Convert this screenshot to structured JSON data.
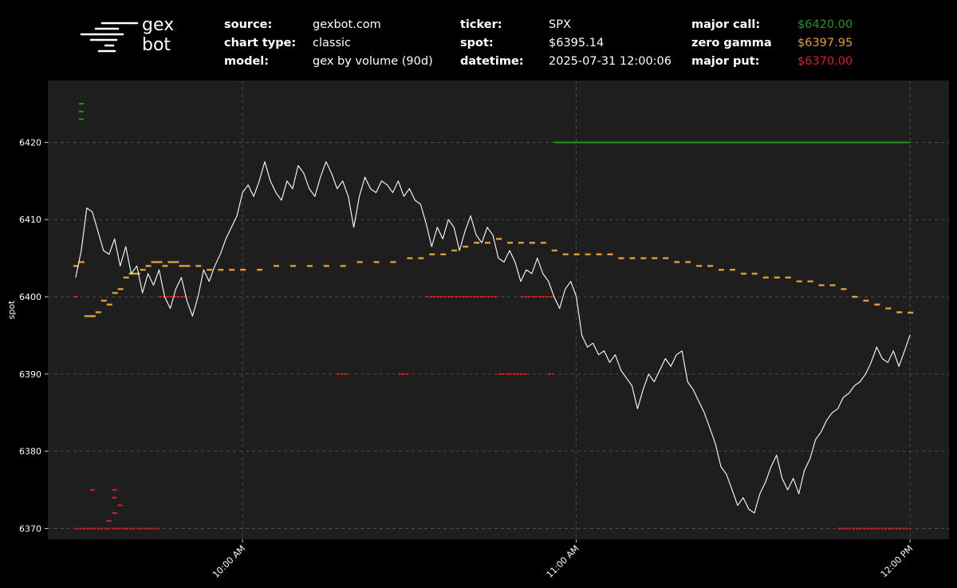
{
  "header": {
    "logo": {
      "line1": "gex",
      "line2": "bot"
    },
    "info": [
      {
        "key": "source:",
        "value": "gexbot.com"
      },
      {
        "key": "chart type:",
        "value": "classic"
      },
      {
        "key": "model:",
        "value": "gex by volume (90d)"
      },
      {
        "key": "ticker:",
        "value": "SPX"
      },
      {
        "key": "spot:",
        "value": "$6395.14"
      },
      {
        "key": "datetime:",
        "value": "2025-07-31 12:00:06"
      },
      {
        "key": "major call:",
        "value": "$6420.00",
        "color": "#1a9a1a"
      },
      {
        "key": "zero gamma",
        "value": "$6397.95",
        "color": "#e0a030"
      },
      {
        "key": "major put:",
        "value": "$6370.00",
        "color": "#e01b1b"
      }
    ]
  },
  "chart_data": {
    "type": "line",
    "title": "",
    "xlabel": "",
    "ylabel": "spot",
    "xlim": [
      "09:25",
      "12:07"
    ],
    "ylim": [
      6368.6,
      6428.0
    ],
    "x_ticks": [
      {
        "time": "10:00",
        "label": "10:00 AM"
      },
      {
        "time": "11:00",
        "label": "11:00 AM"
      },
      {
        "time": "12:00",
        "label": "12:00 PM"
      }
    ],
    "y_ticks": [
      6370,
      6380,
      6390,
      6400,
      6410,
      6420
    ],
    "grid": true,
    "background": "#1e1e1e",
    "series": [
      {
        "kind": "spot",
        "color": "#ffffff",
        "points": [
          [
            "09:30",
            6402.5
          ],
          [
            "09:31",
            6406.0
          ],
          [
            "09:32",
            6411.5
          ],
          [
            "09:33",
            6411.0
          ],
          [
            "09:34",
            6408.5
          ],
          [
            "09:35",
            6406.0
          ],
          [
            "09:36",
            6405.5
          ],
          [
            "09:37",
            6407.5
          ],
          [
            "09:38",
            6404.0
          ],
          [
            "09:39",
            6406.5
          ],
          [
            "09:40",
            6403.0
          ],
          [
            "09:41",
            6404.0
          ],
          [
            "09:42",
            6400.5
          ],
          [
            "09:43",
            6403.0
          ],
          [
            "09:44",
            6401.5
          ],
          [
            "09:45",
            6403.5
          ],
          [
            "09:46",
            6400.0
          ],
          [
            "09:47",
            6398.5
          ],
          [
            "09:48",
            6401.0
          ],
          [
            "09:49",
            6402.5
          ],
          [
            "09:50",
            6399.5
          ],
          [
            "09:51",
            6397.5
          ],
          [
            "09:52",
            6400.0
          ],
          [
            "09:53",
            6403.5
          ],
          [
            "09:54",
            6402.0
          ],
          [
            "09:55",
            6404.0
          ],
          [
            "09:56",
            6405.5
          ],
          [
            "09:57",
            6407.5
          ],
          [
            "09:58",
            6409.0
          ],
          [
            "09:59",
            6410.5
          ],
          [
            "10:00",
            6413.5
          ],
          [
            "10:01",
            6414.5
          ],
          [
            "10:02",
            6413.0
          ],
          [
            "10:03",
            6415.0
          ],
          [
            "10:04",
            6417.5
          ],
          [
            "10:05",
            6415.0
          ],
          [
            "10:06",
            6413.5
          ],
          [
            "10:07",
            6412.5
          ],
          [
            "10:08",
            6415.0
          ],
          [
            "10:09",
            6414.0
          ],
          [
            "10:10",
            6417.0
          ],
          [
            "10:11",
            6416.0
          ],
          [
            "10:12",
            6414.0
          ],
          [
            "10:13",
            6413.0
          ],
          [
            "10:14",
            6415.5
          ],
          [
            "10:15",
            6417.5
          ],
          [
            "10:16",
            6416.0
          ],
          [
            "10:17",
            6414.0
          ],
          [
            "10:18",
            6415.0
          ],
          [
            "10:19",
            6413.0
          ],
          [
            "10:20",
            6409.0
          ],
          [
            "10:21",
            6413.0
          ],
          [
            "10:22",
            6415.5
          ],
          [
            "10:23",
            6414.0
          ],
          [
            "10:24",
            6413.5
          ],
          [
            "10:25",
            6415.0
          ],
          [
            "10:26",
            6414.5
          ],
          [
            "10:27",
            6413.5
          ],
          [
            "10:28",
            6415.0
          ],
          [
            "10:29",
            6413.0
          ],
          [
            "10:30",
            6414.0
          ],
          [
            "10:31",
            6412.5
          ],
          [
            "10:32",
            6412.0
          ],
          [
            "10:33",
            6409.5
          ],
          [
            "10:34",
            6406.5
          ],
          [
            "10:35",
            6409.0
          ],
          [
            "10:36",
            6407.5
          ],
          [
            "10:37",
            6410.0
          ],
          [
            "10:38",
            6409.0
          ],
          [
            "10:39",
            6406.0
          ],
          [
            "10:40",
            6408.5
          ],
          [
            "10:41",
            6410.5
          ],
          [
            "10:42",
            6408.0
          ],
          [
            "10:43",
            6407.0
          ],
          [
            "10:44",
            6409.0
          ],
          [
            "10:45",
            6408.0
          ],
          [
            "10:46",
            6405.0
          ],
          [
            "10:47",
            6404.5
          ],
          [
            "10:48",
            6406.0
          ],
          [
            "10:49",
            6404.5
          ],
          [
            "10:50",
            6402.0
          ],
          [
            "10:51",
            6403.5
          ],
          [
            "10:52",
            6403.0
          ],
          [
            "10:53",
            6405.0
          ],
          [
            "10:54",
            6403.0
          ],
          [
            "10:55",
            6402.0
          ],
          [
            "10:56",
            6400.0
          ],
          [
            "10:57",
            6398.5
          ],
          [
            "10:58",
            6401.0
          ],
          [
            "10:59",
            6402.0
          ],
          [
            "11:00",
            6400.0
          ],
          [
            "11:01",
            6395.0
          ],
          [
            "11:02",
            6393.5
          ],
          [
            "11:03",
            6394.0
          ],
          [
            "11:04",
            6392.5
          ],
          [
            "11:05",
            6393.0
          ],
          [
            "11:06",
            6391.5
          ],
          [
            "11:07",
            6392.5
          ],
          [
            "11:08",
            6390.5
          ],
          [
            "11:09",
            6389.5
          ],
          [
            "11:10",
            6388.5
          ],
          [
            "11:11",
            6385.5
          ],
          [
            "11:12",
            6388.0
          ],
          [
            "11:13",
            6390.0
          ],
          [
            "11:14",
            6389.0
          ],
          [
            "11:15",
            6390.5
          ],
          [
            "11:16",
            6392.0
          ],
          [
            "11:17",
            6391.0
          ],
          [
            "11:18",
            6392.5
          ],
          [
            "11:19",
            6393.0
          ],
          [
            "11:20",
            6389.0
          ],
          [
            "11:21",
            6388.0
          ],
          [
            "11:22",
            6386.5
          ],
          [
            "11:23",
            6385.0
          ],
          [
            "11:24",
            6383.0
          ],
          [
            "11:25",
            6381.0
          ],
          [
            "11:26",
            6378.0
          ],
          [
            "11:27",
            6377.0
          ],
          [
            "11:28",
            6375.0
          ],
          [
            "11:29",
            6373.0
          ],
          [
            "11:30",
            6374.0
          ],
          [
            "11:31",
            6372.5
          ],
          [
            "11:32",
            6372.0
          ],
          [
            "11:33",
            6374.5
          ],
          [
            "11:34",
            6376.0
          ],
          [
            "11:35",
            6378.0
          ],
          [
            "11:36",
            6379.5
          ],
          [
            "11:37",
            6376.5
          ],
          [
            "11:38",
            6375.0
          ],
          [
            "11:39",
            6376.5
          ],
          [
            "11:40",
            6374.5
          ],
          [
            "11:41",
            6377.5
          ],
          [
            "11:42",
            6379.0
          ],
          [
            "11:43",
            6381.5
          ],
          [
            "11:44",
            6382.5
          ],
          [
            "11:45",
            6384.0
          ],
          [
            "11:46",
            6385.0
          ],
          [
            "11:47",
            6385.5
          ],
          [
            "11:48",
            6387.0
          ],
          [
            "11:49",
            6387.5
          ],
          [
            "11:50",
            6388.5
          ],
          [
            "11:51",
            6389.0
          ],
          [
            "11:52",
            6390.0
          ],
          [
            "11:53",
            6391.5
          ],
          [
            "11:54",
            6393.5
          ],
          [
            "11:55",
            6392.0
          ],
          [
            "11:56",
            6391.5
          ],
          [
            "11:57",
            6393.0
          ],
          [
            "11:58",
            6391.0
          ],
          [
            "11:59",
            6393.0
          ],
          [
            "12:00",
            6395.1
          ]
        ]
      },
      {
        "kind": "major-call",
        "color": "#1a9a1a",
        "level": 6420,
        "x_range": [
          "10:56",
          "12:00"
        ],
        "extra_points": [
          [
            "09:31",
            6425
          ],
          [
            "09:31",
            6424
          ],
          [
            "09:31",
            6423
          ]
        ]
      },
      {
        "kind": "zero-gamma",
        "color": "#e0a030",
        "points": [
          [
            "09:30",
            6404.0
          ],
          [
            "09:31",
            6404.5
          ],
          [
            "09:32",
            6397.5
          ],
          [
            "09:33",
            6397.5
          ],
          [
            "09:34",
            6398.0
          ],
          [
            "09:35",
            6399.5
          ],
          [
            "09:36",
            6399.0
          ],
          [
            "09:37",
            6400.5
          ],
          [
            "09:38",
            6401.0
          ],
          [
            "09:39",
            6402.5
          ],
          [
            "09:40",
            6403.0
          ],
          [
            "09:41",
            6403.0
          ],
          [
            "09:42",
            6403.5
          ],
          [
            "09:43",
            6404.0
          ],
          [
            "09:44",
            6404.5
          ],
          [
            "09:45",
            6404.5
          ],
          [
            "09:46",
            6404.0
          ],
          [
            "09:47",
            6404.5
          ],
          [
            "09:48",
            6404.5
          ],
          [
            "09:49",
            6404.0
          ],
          [
            "09:50",
            6404.0
          ],
          [
            "09:52",
            6404.0
          ],
          [
            "09:54",
            6403.5
          ],
          [
            "09:56",
            6403.5
          ],
          [
            "09:58",
            6403.5
          ],
          [
            "10:00",
            6403.5
          ],
          [
            "10:03",
            6403.5
          ],
          [
            "10:06",
            6404.0
          ],
          [
            "10:09",
            6404.0
          ],
          [
            "10:12",
            6404.0
          ],
          [
            "10:15",
            6404.0
          ],
          [
            "10:18",
            6404.0
          ],
          [
            "10:21",
            6404.5
          ],
          [
            "10:24",
            6404.5
          ],
          [
            "10:27",
            6404.5
          ],
          [
            "10:30",
            6405.0
          ],
          [
            "10:32",
            6405.0
          ],
          [
            "10:34",
            6405.5
          ],
          [
            "10:36",
            6405.5
          ],
          [
            "10:38",
            6406.0
          ],
          [
            "10:40",
            6406.5
          ],
          [
            "10:42",
            6407.0
          ],
          [
            "10:44",
            6407.0
          ],
          [
            "10:46",
            6407.5
          ],
          [
            "10:48",
            6407.0
          ],
          [
            "10:50",
            6407.0
          ],
          [
            "10:52",
            6407.0
          ],
          [
            "10:54",
            6407.0
          ],
          [
            "10:56",
            6406.0
          ],
          [
            "10:58",
            6405.5
          ],
          [
            "11:00",
            6405.5
          ],
          [
            "11:02",
            6405.5
          ],
          [
            "11:04",
            6405.5
          ],
          [
            "11:06",
            6405.5
          ],
          [
            "11:08",
            6405.0
          ],
          [
            "11:10",
            6405.0
          ],
          [
            "11:12",
            6405.0
          ],
          [
            "11:14",
            6405.0
          ],
          [
            "11:16",
            6405.0
          ],
          [
            "11:18",
            6404.5
          ],
          [
            "11:20",
            6404.5
          ],
          [
            "11:22",
            6404.0
          ],
          [
            "11:24",
            6404.0
          ],
          [
            "11:26",
            6403.5
          ],
          [
            "11:28",
            6403.5
          ],
          [
            "11:30",
            6403.0
          ],
          [
            "11:32",
            6403.0
          ],
          [
            "11:34",
            6402.5
          ],
          [
            "11:36",
            6402.5
          ],
          [
            "11:38",
            6402.5
          ],
          [
            "11:40",
            6402.0
          ],
          [
            "11:42",
            6402.0
          ],
          [
            "11:44",
            6401.5
          ],
          [
            "11:46",
            6401.5
          ],
          [
            "11:48",
            6401.0
          ],
          [
            "11:50",
            6400.0
          ],
          [
            "11:52",
            6399.5
          ],
          [
            "11:54",
            6399.0
          ],
          [
            "11:56",
            6398.5
          ],
          [
            "11:58",
            6398.0
          ],
          [
            "12:00",
            6397.95
          ]
        ]
      },
      {
        "kind": "major-put",
        "color": "#e01b1b",
        "segments": [
          {
            "from": "09:30",
            "to": "09:39",
            "level": 6370
          },
          {
            "from": "09:39",
            "to": "09:45",
            "level": 6370
          },
          {
            "from": "09:45",
            "to": "09:50",
            "level": 6400
          },
          {
            "from": "10:17",
            "to": "10:19",
            "level": 6390
          },
          {
            "from": "10:28",
            "to": "10:30",
            "level": 6390
          },
          {
            "from": "10:33",
            "to": "10:46",
            "level": 6400
          },
          {
            "from": "10:46",
            "to": "10:51",
            "level": 6390
          },
          {
            "from": "10:50",
            "to": "10:56",
            "level": 6400
          },
          {
            "from": "10:55",
            "to": "10:56",
            "level": 6390
          },
          {
            "from": "11:47",
            "to": "12:00",
            "level": 6370
          }
        ],
        "extra_points": [
          [
            "09:30",
            6400.0
          ],
          [
            "09:33",
            6375.0
          ],
          [
            "09:37",
            6375.0
          ],
          [
            "09:37",
            6374.0
          ],
          [
            "09:36",
            6371.0
          ],
          [
            "09:37",
            6372.0
          ],
          [
            "09:38",
            6373.0
          ]
        ]
      }
    ]
  }
}
